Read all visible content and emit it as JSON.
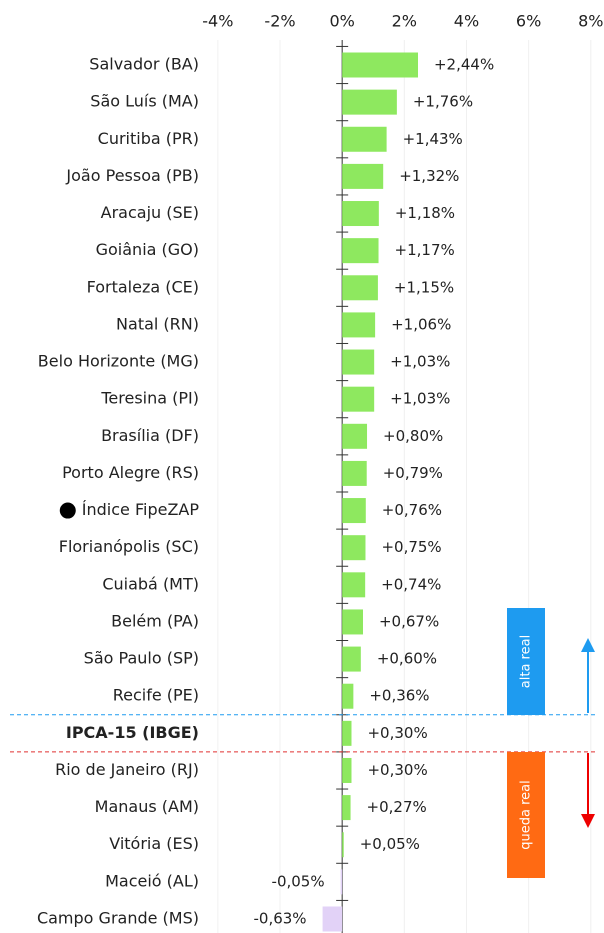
{
  "chart_data": {
    "type": "bar",
    "orientation": "horizontal",
    "categories": [
      "Salvador (BA)",
      "São Luís (MA)",
      "Curitiba (PR)",
      "João Pessoa (PB)",
      "Aracaju (SE)",
      "Goiânia (GO)",
      "Fortaleza (CE)",
      "Natal (RN)",
      "Belo Horizonte (MG)",
      "Teresina (PI)",
      "Brasília (DF)",
      "Porto Alegre (RS)",
      "Índice FipeZAP",
      "Florianópolis (SC)",
      "Cuiabá (MT)",
      "Belém (PA)",
      "São Paulo (SP)",
      "Recife (PE)",
      "IPCA-15 (IBGE)",
      "Rio de Janeiro (RJ)",
      "Manaus (AM)",
      "Vitória (ES)",
      "Maceió (AL)",
      "Campo Grande (MS)"
    ],
    "values": [
      2.44,
      1.76,
      1.43,
      1.32,
      1.18,
      1.17,
      1.15,
      1.06,
      1.03,
      1.03,
      0.8,
      0.79,
      0.76,
      0.75,
      0.74,
      0.67,
      0.6,
      0.36,
      0.3,
      0.3,
      0.27,
      0.05,
      -0.05,
      -0.63
    ],
    "value_labels": [
      "+2,44%",
      "+1,76%",
      "+1,43%",
      "+1,32%",
      "+1,18%",
      "+1,17%",
      "+1,15%",
      "+1,06%",
      "+1,03%",
      "+1,03%",
      "+0,80%",
      "+0,79%",
      "+0,76%",
      "+0,75%",
      "+0,74%",
      "+0,67%",
      "+0,60%",
      "+0,36%",
      "+0,30%",
      "+0,30%",
      "+0,27%",
      "+0,05%",
      "-0,05%",
      "-0,63%"
    ],
    "color": "#8ee85f",
    "negative_color": "#e2d2f7",
    "xlim": [
      -4.8,
      8.2
    ],
    "xticks": [
      {
        "value": -4,
        "label": "-4%"
      },
      {
        "value": -2,
        "label": "-2%"
      },
      {
        "value": 0,
        "label": "0%"
      },
      {
        "value": 2,
        "label": "2%"
      },
      {
        "value": 4,
        "label": "4%"
      },
      {
        "value": 6,
        "label": "6%"
      },
      {
        "value": 8,
        "label": "8%"
      }
    ],
    "grid": true,
    "reference_index": 18,
    "marker_index": 12,
    "annotations": [
      {
        "text": "alta real",
        "color": "#1e9bf0"
      },
      {
        "text": "queda real",
        "color": "#ff6a13"
      }
    ]
  }
}
